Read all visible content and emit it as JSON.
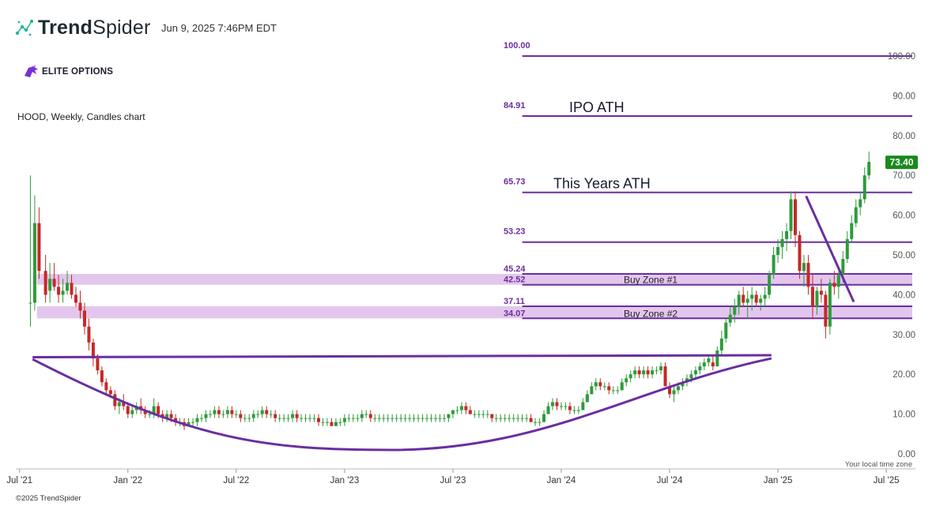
{
  "header": {
    "brand_bold": "Trend",
    "brand_light": "Spider",
    "timestamp": "Jun 9, 2025 7:46PM EDT"
  },
  "watermark": {
    "elite_text": "ELITE OPTIONS"
  },
  "footer": {
    "copyright": "©2025 TrendSpider",
    "timezone_label": "Your local time zone"
  },
  "colors": {
    "up": "#2e9b3a",
    "down": "#c62828",
    "level": "#6a2ea1",
    "zone": "#e3c6ec",
    "price_badge": "#198a1c",
    "brand_purple": "#7b2fd0"
  },
  "chart_data": {
    "type": "candlestick",
    "title": "HOOD, Weekly, Candles chart",
    "x_range": [
      2021.49,
      2025.62
    ],
    "ylim": [
      0,
      100
    ],
    "y_ticks": [
      "0.00",
      "10.00",
      "20.00",
      "30.00",
      "40.00",
      "50.00",
      "60.00",
      "70.00",
      "80.00",
      "90.00",
      "100.00"
    ],
    "x_ticks": [
      {
        "label": "Jul '21",
        "t": 2021.5
      },
      {
        "label": "Jan '22",
        "t": 2022.0
      },
      {
        "label": "Jul '22",
        "t": 2022.5
      },
      {
        "label": "Jan '23",
        "t": 2023.0
      },
      {
        "label": "Jul '23",
        "t": 2023.5
      },
      {
        "label": "Jan '24",
        "t": 2024.0
      },
      {
        "label": "Jul '24",
        "t": 2024.5
      },
      {
        "label": "Jan '25",
        "t": 2025.0
      },
      {
        "label": "Jul '25",
        "t": 2025.5
      }
    ],
    "last_price": "73.40",
    "levels": [
      {
        "value": 100.0,
        "label": "100.00",
        "annotation": "",
        "t_start": 2023.82
      },
      {
        "value": 84.91,
        "label": "84.91",
        "annotation": "IPO ATH",
        "t_start": 2023.82
      },
      {
        "value": 65.73,
        "label": "65.73",
        "annotation": "This Years ATH",
        "t_start": 2023.82
      },
      {
        "value": 53.23,
        "label": "53.23",
        "annotation": "",
        "t_start": 2023.82
      }
    ],
    "zones": [
      {
        "name": "Buy Zone #1",
        "top": 45.24,
        "bottom": 42.52,
        "top_label": "45.24",
        "bottom_label": "42.52",
        "t_start": 2021.58
      },
      {
        "name": "Buy Zone #2",
        "top": 37.11,
        "bottom": 34.07,
        "top_label": "37.11",
        "bottom_label": "34.07",
        "t_start": 2021.58
      }
    ],
    "trendlines": [
      {
        "name": "cup-rim",
        "points": [
          [
            2021.56,
            24.3
          ],
          [
            2024.97,
            24.8
          ]
        ]
      },
      {
        "name": "downtrend",
        "points": [
          [
            2025.13,
            64.8
          ],
          [
            2025.35,
            38.2
          ]
        ]
      }
    ],
    "cup_curve": {
      "start": [
        2021.56,
        23.8
      ],
      "bottom": [
        2023.22,
        1.0
      ],
      "end": [
        2024.97,
        24.0
      ]
    },
    "candles": [
      [
        2021.55,
        38,
        70,
        32,
        38
      ],
      [
        2021.57,
        38,
        65,
        36,
        58
      ],
      [
        2021.59,
        58,
        62,
        44,
        46
      ],
      [
        2021.62,
        46,
        50,
        38,
        40
      ],
      [
        2021.64,
        41,
        48,
        38,
        44
      ],
      [
        2021.66,
        44,
        48,
        41,
        42
      ],
      [
        2021.68,
        42,
        45,
        38,
        40
      ],
      [
        2021.7,
        40,
        44,
        38,
        41
      ],
      [
        2021.72,
        41,
        46,
        40,
        43
      ],
      [
        2021.74,
        43,
        45,
        39,
        40
      ],
      [
        2021.76,
        40,
        42,
        37,
        38
      ],
      [
        2021.78,
        38,
        41,
        34,
        36
      ],
      [
        2021.8,
        36,
        38,
        30,
        32
      ],
      [
        2021.82,
        32,
        34,
        26,
        28
      ],
      [
        2021.84,
        28,
        29,
        22,
        24
      ],
      [
        2021.86,
        24,
        25,
        20,
        21
      ],
      [
        2021.88,
        21,
        22,
        17,
        18
      ],
      [
        2021.9,
        18,
        19,
        15,
        16
      ],
      [
        2021.92,
        16,
        17,
        14,
        15
      ],
      [
        2021.94,
        15,
        16,
        11,
        12
      ],
      [
        2021.96,
        12,
        14,
        10,
        13
      ],
      [
        2021.98,
        13,
        15,
        11,
        12
      ],
      [
        2022.0,
        12,
        13,
        9,
        10
      ],
      [
        2022.02,
        10,
        12,
        9,
        11
      ],
      [
        2022.04,
        11,
        13,
        10,
        12
      ],
      [
        2022.06,
        12,
        14,
        10,
        11
      ],
      [
        2022.08,
        11,
        12,
        9,
        10
      ],
      [
        2022.1,
        10,
        11,
        9,
        10
      ],
      [
        2022.12,
        10,
        14,
        9,
        12
      ],
      [
        2022.14,
        12,
        13,
        9,
        10
      ],
      [
        2022.16,
        10,
        11,
        8,
        9
      ],
      [
        2022.18,
        9,
        11,
        8,
        10
      ],
      [
        2022.2,
        10,
        11,
        8,
        9
      ],
      [
        2022.22,
        9,
        10,
        7,
        8
      ],
      [
        2022.24,
        8,
        9,
        7,
        8
      ],
      [
        2022.26,
        8,
        9,
        6,
        7
      ],
      [
        2022.28,
        7,
        9,
        7,
        8
      ],
      [
        2022.3,
        8,
        9,
        7,
        8
      ],
      [
        2022.32,
        8,
        10,
        7,
        9
      ],
      [
        2022.34,
        9,
        10,
        8,
        9
      ],
      [
        2022.36,
        9,
        11,
        8,
        10
      ],
      [
        2022.38,
        10,
        11,
        9,
        10
      ],
      [
        2022.4,
        10,
        12,
        9,
        11
      ],
      [
        2022.42,
        11,
        12,
        9,
        10
      ],
      [
        2022.44,
        10,
        11,
        9,
        10
      ],
      [
        2022.46,
        10,
        12,
        9,
        11
      ],
      [
        2022.48,
        11,
        12,
        9,
        10
      ],
      [
        2022.5,
        10,
        11,
        9,
        10
      ],
      [
        2022.52,
        10,
        11,
        8,
        9
      ],
      [
        2022.54,
        9,
        10,
        8,
        9
      ],
      [
        2022.56,
        9,
        10,
        8,
        9
      ],
      [
        2022.58,
        9,
        11,
        8,
        10
      ],
      [
        2022.6,
        10,
        11,
        9,
        10
      ],
      [
        2022.62,
        10,
        12,
        9,
        11
      ],
      [
        2022.64,
        11,
        12,
        9,
        10
      ],
      [
        2022.66,
        10,
        11,
        9,
        10
      ],
      [
        2022.68,
        10,
        11,
        8,
        9
      ],
      [
        2022.7,
        9,
        10,
        8,
        9
      ],
      [
        2022.72,
        9,
        10,
        8,
        9
      ],
      [
        2022.74,
        9,
        10,
        8,
        9
      ],
      [
        2022.76,
        9,
        11,
        8,
        10
      ],
      [
        2022.78,
        10,
        11,
        8,
        9
      ],
      [
        2022.8,
        9,
        10,
        8,
        9
      ],
      [
        2022.82,
        9,
        10,
        8,
        9
      ],
      [
        2022.84,
        9,
        10,
        8,
        9
      ],
      [
        2022.86,
        9,
        10,
        8,
        9
      ],
      [
        2022.88,
        9,
        10,
        7,
        8
      ],
      [
        2022.9,
        8,
        9,
        7,
        8
      ],
      [
        2022.92,
        8,
        9,
        7,
        8
      ],
      [
        2022.94,
        8,
        9,
        7,
        7
      ],
      [
        2022.96,
        7,
        9,
        7,
        8
      ],
      [
        2022.98,
        8,
        9,
        7,
        8
      ],
      [
        2023.0,
        8,
        10,
        7,
        9
      ],
      [
        2023.02,
        9,
        10,
        8,
        9
      ],
      [
        2023.04,
        9,
        10,
        8,
        9
      ],
      [
        2023.06,
        9,
        10,
        8,
        9
      ],
      [
        2023.08,
        9,
        11,
        8,
        10
      ],
      [
        2023.1,
        10,
        11,
        9,
        10
      ],
      [
        2023.12,
        10,
        11,
        8,
        9
      ],
      [
        2023.14,
        9,
        10,
        8,
        9
      ],
      [
        2023.16,
        9,
        10,
        8,
        9
      ],
      [
        2023.18,
        9,
        10,
        8,
        9
      ],
      [
        2023.2,
        9,
        10,
        8,
        9
      ],
      [
        2023.22,
        9,
        10,
        8,
        9
      ],
      [
        2023.24,
        9,
        10,
        8,
        9
      ],
      [
        2023.26,
        9,
        10,
        8,
        9
      ],
      [
        2023.28,
        9,
        10,
        8,
        9
      ],
      [
        2023.3,
        9,
        10,
        8,
        9
      ],
      [
        2023.32,
        9,
        10,
        8,
        9
      ],
      [
        2023.34,
        9,
        10,
        8,
        9
      ],
      [
        2023.36,
        9,
        10,
        8,
        9
      ],
      [
        2023.38,
        9,
        10,
        8,
        9
      ],
      [
        2023.4,
        9,
        10,
        8,
        9
      ],
      [
        2023.42,
        9,
        10,
        8,
        9
      ],
      [
        2023.44,
        9,
        10,
        8,
        9
      ],
      [
        2023.46,
        9,
        10,
        8,
        9
      ],
      [
        2023.48,
        9,
        10,
        8,
        10
      ],
      [
        2023.5,
        10,
        11,
        9,
        11
      ],
      [
        2023.52,
        11,
        12,
        10,
        11
      ],
      [
        2023.54,
        11,
        13,
        10,
        12
      ],
      [
        2023.56,
        12,
        13,
        10,
        11
      ],
      [
        2023.58,
        11,
        12,
        10,
        10
      ],
      [
        2023.6,
        10,
        11,
        9,
        10
      ],
      [
        2023.62,
        10,
        11,
        9,
        10
      ],
      [
        2023.64,
        10,
        11,
        9,
        10
      ],
      [
        2023.66,
        10,
        11,
        9,
        10
      ],
      [
        2023.68,
        10,
        10,
        8,
        9
      ],
      [
        2023.7,
        9,
        10,
        8,
        9
      ],
      [
        2023.72,
        9,
        10,
        8,
        9
      ],
      [
        2023.74,
        9,
        10,
        8,
        9
      ],
      [
        2023.76,
        9,
        10,
        8,
        9
      ],
      [
        2023.78,
        9,
        10,
        8,
        9
      ],
      [
        2023.8,
        9,
        10,
        8,
        9
      ],
      [
        2023.82,
        9,
        10,
        8,
        9
      ],
      [
        2023.84,
        9,
        10,
        8,
        9
      ],
      [
        2023.86,
        9,
        10,
        8,
        8
      ],
      [
        2023.88,
        8,
        9,
        7,
        8
      ],
      [
        2023.9,
        8,
        9,
        7,
        8
      ],
      [
        2023.92,
        8,
        11,
        8,
        10
      ],
      [
        2023.94,
        10,
        13,
        10,
        12
      ],
      [
        2023.96,
        12,
        14,
        11,
        13
      ],
      [
        2023.98,
        13,
        14,
        11,
        12
      ],
      [
        2024.0,
        12,
        13,
        11,
        12
      ],
      [
        2024.02,
        12,
        13,
        11,
        12
      ],
      [
        2024.04,
        12,
        13,
        10,
        11
      ],
      [
        2024.06,
        11,
        12,
        10,
        11
      ],
      [
        2024.08,
        11,
        12,
        10,
        11
      ],
      [
        2024.1,
        11,
        14,
        11,
        13
      ],
      [
        2024.12,
        13,
        16,
        13,
        15
      ],
      [
        2024.14,
        15,
        18,
        15,
        17
      ],
      [
        2024.16,
        17,
        19,
        16,
        18
      ],
      [
        2024.18,
        18,
        19,
        16,
        17
      ],
      [
        2024.2,
        17,
        18,
        16,
        17
      ],
      [
        2024.22,
        17,
        18,
        15,
        16
      ],
      [
        2024.24,
        16,
        17,
        15,
        16
      ],
      [
        2024.26,
        16,
        17,
        15,
        16
      ],
      [
        2024.28,
        16,
        19,
        16,
        18
      ],
      [
        2024.3,
        18,
        20,
        17,
        19
      ],
      [
        2024.32,
        19,
        21,
        18,
        20
      ],
      [
        2024.34,
        20,
        22,
        19,
        21
      ],
      [
        2024.36,
        21,
        22,
        19,
        20
      ],
      [
        2024.38,
        20,
        22,
        19,
        21
      ],
      [
        2024.4,
        21,
        22,
        19,
        20
      ],
      [
        2024.42,
        20,
        22,
        19,
        21
      ],
      [
        2024.44,
        21,
        22,
        20,
        21
      ],
      [
        2024.46,
        21,
        23,
        20,
        22
      ],
      [
        2024.48,
        22,
        23,
        17,
        17
      ],
      [
        2024.5,
        17,
        18,
        14,
        15
      ],
      [
        2024.52,
        15,
        17,
        13,
        16
      ],
      [
        2024.54,
        16,
        18,
        15,
        17
      ],
      [
        2024.56,
        17,
        19,
        16,
        18
      ],
      [
        2024.58,
        18,
        20,
        17,
        19
      ],
      [
        2024.6,
        19,
        21,
        18,
        20
      ],
      [
        2024.62,
        20,
        22,
        19,
        21
      ],
      [
        2024.64,
        21,
        23,
        20,
        22
      ],
      [
        2024.66,
        22,
        24,
        21,
        23
      ],
      [
        2024.68,
        23,
        25,
        22,
        24
      ],
      [
        2024.7,
        23,
        25,
        21,
        22
      ],
      [
        2024.72,
        22,
        27,
        22,
        26
      ],
      [
        2024.74,
        26,
        31,
        25,
        29
      ],
      [
        2024.76,
        29,
        34,
        28,
        33
      ],
      [
        2024.78,
        33,
        37,
        32,
        35
      ],
      [
        2024.8,
        35,
        39,
        33,
        37
      ],
      [
        2024.82,
        37,
        41,
        35,
        40
      ],
      [
        2024.84,
        40,
        42,
        37,
        38
      ],
      [
        2024.86,
        38,
        41,
        34,
        39
      ],
      [
        2024.88,
        39,
        42,
        36,
        40
      ],
      [
        2024.9,
        40,
        41,
        37,
        38
      ],
      [
        2024.92,
        38,
        40,
        36,
        39
      ],
      [
        2024.94,
        39,
        42,
        37,
        40
      ],
      [
        2024.96,
        40,
        46,
        39,
        45
      ],
      [
        2024.98,
        45,
        52,
        44,
        50
      ],
      [
        2025.0,
        50,
        54,
        48,
        52
      ],
      [
        2025.02,
        52,
        56,
        49,
        54
      ],
      [
        2025.04,
        54,
        58,
        51,
        56
      ],
      [
        2025.06,
        56,
        66,
        54,
        64
      ],
      [
        2025.08,
        64,
        66,
        52,
        55
      ],
      [
        2025.1,
        55,
        56,
        44,
        46
      ],
      [
        2025.12,
        46,
        50,
        42,
        48
      ],
      [
        2025.14,
        48,
        50,
        40,
        42
      ],
      [
        2025.16,
        42,
        45,
        34,
        37
      ],
      [
        2025.18,
        37,
        42,
        35,
        41
      ],
      [
        2025.2,
        41,
        44,
        38,
        40
      ],
      [
        2025.22,
        40,
        41,
        29,
        32
      ],
      [
        2025.24,
        32,
        44,
        30,
        43
      ],
      [
        2025.26,
        43,
        46,
        40,
        42
      ],
      [
        2025.28,
        42,
        47,
        39,
        45
      ],
      [
        2025.3,
        45,
        51,
        43,
        49
      ],
      [
        2025.32,
        49,
        56,
        48,
        54
      ],
      [
        2025.34,
        54,
        60,
        53,
        58
      ],
      [
        2025.36,
        58,
        64,
        57,
        62
      ],
      [
        2025.38,
        62,
        66,
        60,
        64
      ],
      [
        2025.4,
        64,
        72,
        63,
        70
      ],
      [
        2025.42,
        70,
        76,
        69,
        73.4
      ]
    ]
  }
}
